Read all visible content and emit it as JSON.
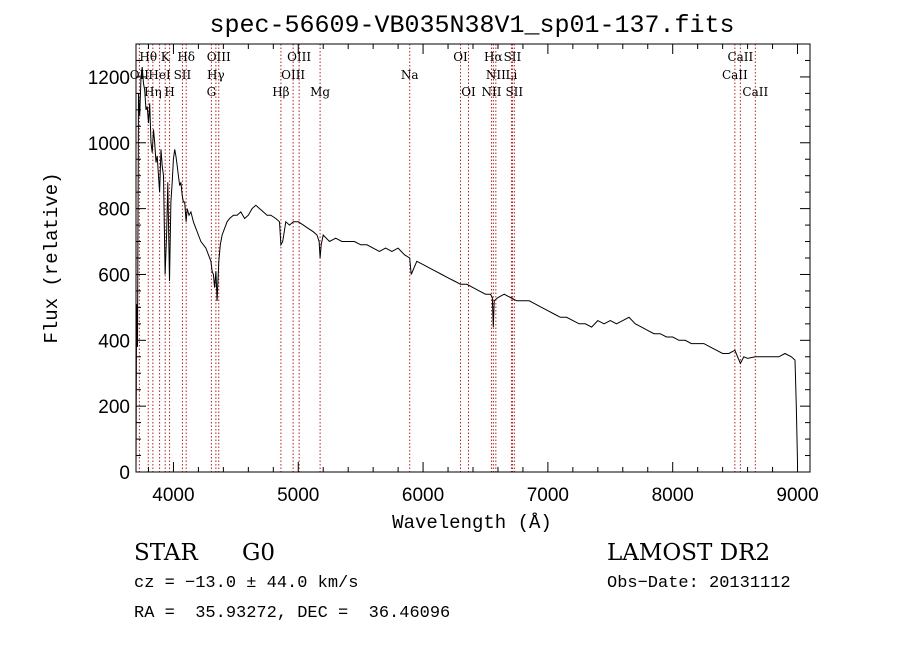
{
  "chart_data": {
    "type": "line",
    "title": "spec-56609-VB035N38V1_sp01-137.fits",
    "xlabel": "Wavelength (Å)",
    "ylabel": "Flux (relative)",
    "xlim": [
      3700,
      9100
    ],
    "ylim": [
      0,
      1300
    ],
    "x_ticks": [
      4000,
      5000,
      6000,
      7000,
      8000,
      9000
    ],
    "y_ticks": [
      0,
      200,
      400,
      600,
      800,
      1000,
      1200
    ],
    "grid": false,
    "spectrum": {
      "x": [
        3700,
        3705,
        3712,
        3720,
        3730,
        3740,
        3750,
        3760,
        3770,
        3780,
        3790,
        3800,
        3810,
        3820,
        3830,
        3840,
        3850,
        3860,
        3870,
        3880,
        3889,
        3900,
        3910,
        3920,
        3933,
        3945,
        3955,
        3968,
        3980,
        3990,
        4000,
        4010,
        4020,
        4030,
        4040,
        4050,
        4060,
        4070,
        4080,
        4090,
        4101,
        4110,
        4125,
        4140,
        4160,
        4180,
        4200,
        4220,
        4240,
        4260,
        4280,
        4300,
        4310,
        4320,
        4330,
        4340,
        4350,
        4363,
        4375,
        4390,
        4410,
        4430,
        4450,
        4480,
        4510,
        4540,
        4570,
        4600,
        4630,
        4660,
        4690,
        4720,
        4750,
        4780,
        4820,
        4850,
        4861,
        4875,
        4900,
        4930,
        4960,
        5000,
        5040,
        5080,
        5120,
        5150,
        5167,
        5175,
        5184,
        5200,
        5250,
        5300,
        5350,
        5400,
        5450,
        5500,
        5550,
        5600,
        5650,
        5700,
        5750,
        5800,
        5850,
        5893,
        5905,
        5950,
        6000,
        6050,
        6100,
        6150,
        6200,
        6250,
        6300,
        6350,
        6400,
        6450,
        6500,
        6540,
        6555,
        6563,
        6570,
        6600,
        6650,
        6700,
        6750,
        6800,
        6850,
        6900,
        6950,
        7000,
        7050,
        7100,
        7150,
        7200,
        7250,
        7300,
        7350,
        7400,
        7450,
        7500,
        7550,
        7600,
        7650,
        7700,
        7750,
        7800,
        7850,
        7900,
        7950,
        8000,
        8050,
        8100,
        8150,
        8200,
        8250,
        8300,
        8350,
        8400,
        8450,
        8498,
        8520,
        8542,
        8570,
        8600,
        8662,
        8700,
        8750,
        8800,
        8850,
        8900,
        8950,
        8980,
        8990,
        9000
      ],
      "y": [
        0,
        510,
        380,
        1150,
        1080,
        1200,
        1230,
        1180,
        1160,
        1100,
        1110,
        1060,
        1120,
        1000,
        970,
        1040,
        1000,
        940,
        960,
        900,
        850,
        980,
        930,
        900,
        600,
        720,
        880,
        580,
        820,
        880,
        950,
        980,
        960,
        930,
        900,
        870,
        880,
        840,
        820,
        820,
        760,
        800,
        780,
        790,
        760,
        740,
        720,
        700,
        690,
        680,
        660,
        640,
        610,
        600,
        560,
        610,
        520,
        640,
        690,
        720,
        740,
        760,
        770,
        780,
        780,
        790,
        770,
        780,
        800,
        810,
        800,
        790,
        780,
        780,
        770,
        760,
        690,
        700,
        760,
        750,
        760,
        760,
        750,
        740,
        730,
        720,
        700,
        650,
        690,
        720,
        700,
        710,
        700,
        700,
        700,
        690,
        690,
        680,
        670,
        680,
        670,
        680,
        660,
        650,
        600,
        640,
        630,
        620,
        610,
        600,
        590,
        580,
        570,
        570,
        560,
        550,
        540,
        540,
        530,
        440,
        520,
        530,
        540,
        530,
        520,
        520,
        520,
        510,
        500,
        490,
        480,
        470,
        470,
        460,
        450,
        450,
        440,
        460,
        450,
        460,
        450,
        460,
        470,
        450,
        440,
        430,
        420,
        420,
        410,
        410,
        400,
        400,
        390,
        390,
        390,
        380,
        370,
        360,
        360,
        370,
        350,
        330,
        350,
        345,
        350,
        350,
        350,
        350,
        350,
        360,
        350,
        340,
        200,
        30
      ]
    },
    "lines": [
      {
        "label": "Hθ",
        "x": 3798,
        "row": 1
      },
      {
        "label": "K",
        "x": 3934,
        "row": 1
      },
      {
        "label": "Hδ",
        "x": 4102,
        "row": 1
      },
      {
        "label": "OIII",
        "x": 4363,
        "row": 1
      },
      {
        "label": "OIII",
        "x": 5007,
        "row": 1
      },
      {
        "label": "OI",
        "x": 6300,
        "row": 1
      },
      {
        "label": "Hα",
        "x": 6563,
        "row": 1
      },
      {
        "label": "SII",
        "x": 6716,
        "row": 1
      },
      {
        "label": "CaII",
        "x": 8542,
        "row": 1
      },
      {
        "label": "OII",
        "x": 3727,
        "row": 2
      },
      {
        "label": "HeI",
        "x": 3889,
        "row": 2
      },
      {
        "label": "SII",
        "x": 4072,
        "row": 2
      },
      {
        "label": "Hγ",
        "x": 4340,
        "row": 2
      },
      {
        "label": "OIII",
        "x": 4959,
        "row": 2
      },
      {
        "label": "Na",
        "x": 5893,
        "row": 2
      },
      {
        "label": "NII",
        "x": 6583,
        "row": 2
      },
      {
        "label": "Li",
        "x": 6708,
        "row": 2
      },
      {
        "label": "CaII",
        "x": 8498,
        "row": 2
      },
      {
        "label": "Hη",
        "x": 3835,
        "row": 3
      },
      {
        "label": "H",
        "x": 3969,
        "row": 3
      },
      {
        "label": "G",
        "x": 4304,
        "row": 3
      },
      {
        "label": "Hβ",
        "x": 4861,
        "row": 3
      },
      {
        "label": "Mg",
        "x": 5175,
        "row": 3
      },
      {
        "label": "OI",
        "x": 6364,
        "row": 3
      },
      {
        "label": "NII",
        "x": 6548,
        "row": 3
      },
      {
        "label": "SII",
        "x": 6731,
        "row": 3
      },
      {
        "label": "CaII",
        "x": 8662,
        "row": 3
      }
    ]
  },
  "info": {
    "object_class": "STAR",
    "subclass": "G0",
    "survey": "LAMOST DR2",
    "redshift": "cz = −13.0 ± 44.0 km/s",
    "obs_date": "Obs−Date: 20131112",
    "coords": "RA =  35.93272, DEC =  36.46096"
  }
}
